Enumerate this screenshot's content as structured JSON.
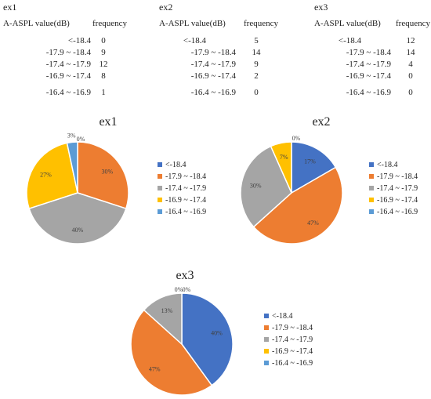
{
  "tables": [
    {
      "title": "ex1",
      "header_value": "A-ASPL value(dB)",
      "header_freq": "frequency",
      "rows": [
        {
          "range": "<-18.4",
          "freq": "0"
        },
        {
          "range": "-17.9 ~ -18.4",
          "freq": "9"
        },
        {
          "range": "-17.4 ~ -17.9",
          "freq": "12"
        },
        {
          "range": "-16.9 ~ -17.4",
          "freq": "8"
        },
        {
          "range": "-16.4 ~ -16.9",
          "freq": "1"
        }
      ]
    },
    {
      "title": "ex2",
      "header_value": "A-ASPL value(dB)",
      "header_freq": "frequency",
      "rows": [
        {
          "range": "<-18.4",
          "freq": "5"
        },
        {
          "range": "-17.9 ~ -18.4",
          "freq": "14"
        },
        {
          "range": "-17.4 ~ -17.9",
          "freq": "9"
        },
        {
          "range": "-16.9 ~ -17.4",
          "freq": "2"
        },
        {
          "range": "-16.4 ~ -16.9",
          "freq": "0"
        }
      ]
    },
    {
      "title": "ex3",
      "header_value": "A-ASPL value(dB)",
      "header_freq": "frequency",
      "rows": [
        {
          "range": "<-18.4",
          "freq": "12"
        },
        {
          "range": "-17.9 ~ -18.4",
          "freq": "14"
        },
        {
          "range": "-17.4 ~ -17.9",
          "freq": "4"
        },
        {
          "range": "-16.9 ~ -17.4",
          "freq": "0"
        },
        {
          "range": "-16.4 ~ -16.9",
          "freq": "0"
        }
      ]
    }
  ],
  "colors": [
    "#4472C4",
    "#ED7D31",
    "#A5A5A5",
    "#FFC000",
    "#5B9BD5"
  ],
  "chart_data": [
    {
      "type": "pie",
      "title": "ex1",
      "categories": [
        "<-18.4",
        "-17.9 ~ -18.4",
        "-17.4 ~ -17.9",
        "-16.9 ~ -17.4",
        "-16.4 ~ -16.9"
      ],
      "values": [
        0,
        9,
        12,
        8,
        1
      ],
      "data_labels": [
        "",
        "30%",
        "40%",
        "27%",
        "3%"
      ],
      "extra_label": "0%",
      "legend_position": "right"
    },
    {
      "type": "pie",
      "title": "ex2",
      "categories": [
        "<-18.4",
        "-17.9 ~ -18.4",
        "-17.4 ~ -17.9",
        "-16.9 ~ -17.4",
        "-16.4 ~ -16.9"
      ],
      "values": [
        5,
        14,
        9,
        2,
        0
      ],
      "data_labels": [
        "17%",
        "47%",
        "30%",
        "7%",
        "0%"
      ],
      "legend_position": "right"
    },
    {
      "type": "pie",
      "title": "ex3",
      "categories": [
        "<-18.4",
        "-17.9 ~ -18.4",
        "-17.4 ~ -17.9",
        "-16.9 ~ -17.4",
        "-16.4 ~ -16.9"
      ],
      "values": [
        12,
        14,
        4,
        0,
        0
      ],
      "data_labels": [
        "40%",
        "47%",
        "13%",
        "0%",
        "0%"
      ],
      "legend_position": "right"
    }
  ]
}
